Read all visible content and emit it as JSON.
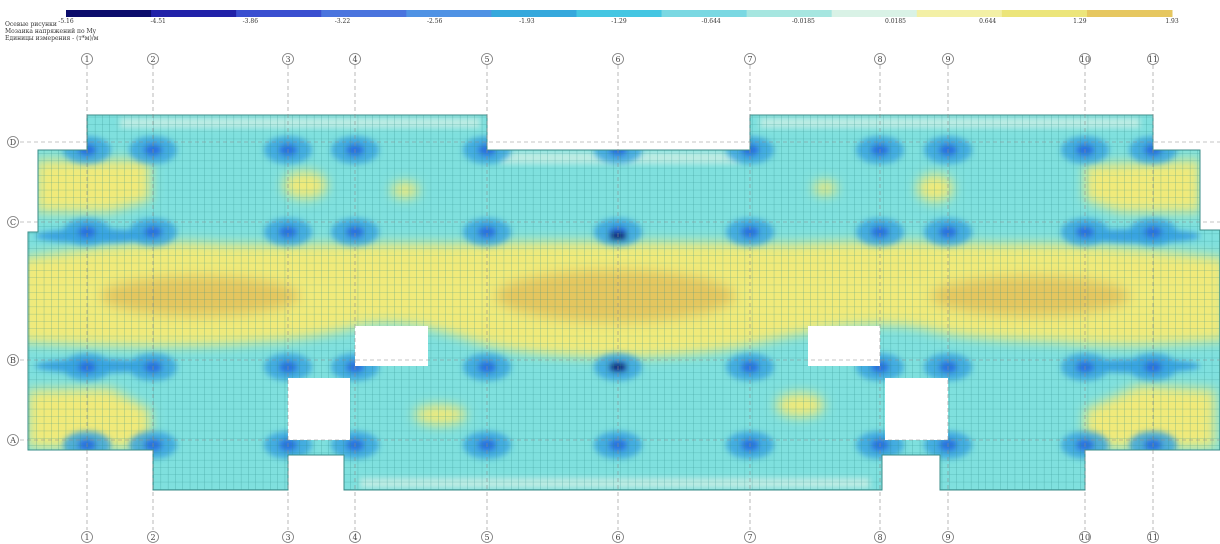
{
  "legend": {
    "colors": [
      "#0b0c6b",
      "#2121a8",
      "#3a4fd0",
      "#4a74de",
      "#4f92e4",
      "#35a8dc",
      "#44c6e2",
      "#7ad8e2",
      "#a6e6e0",
      "#d9f2e6",
      "#f3f0a6",
      "#ece57a",
      "#e6c760"
    ],
    "ticks": [
      "-5.16",
      "-4.51",
      "-3.86",
      "-3.22",
      "-2.56",
      "-1.93",
      "-1.29",
      "-0.644",
      "-0.0185",
      "0.0185",
      "0.644",
      "1.29",
      "1.93"
    ]
  },
  "info": {
    "line1": "Осевые рисунки",
    "line2": "Мозаика напряжений по My",
    "line3": "Единицы измерения - (т*м)/м"
  },
  "grid_axes": {
    "columns": [
      "1",
      "2",
      "3",
      "4",
      "5",
      "6",
      "7",
      "8",
      "9",
      "10",
      "11"
    ],
    "rows": [
      "D",
      "C",
      "B",
      "A"
    ]
  },
  "colors": {
    "mesh_base": "#7fe0de",
    "mesh_line": "#2f8f8c",
    "positive": "#f0ea7a",
    "positive_strong": "#e4c65e",
    "negative": "#3aa3e0",
    "negative_strong": "#1f3fcf",
    "negative_peak": "#0b0c6b"
  }
}
